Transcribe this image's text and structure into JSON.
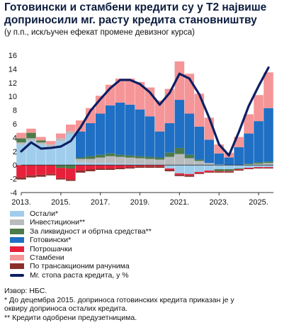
{
  "title_lines": [
    "Готовински и стамбени кредити су у Т2 највише",
    "доприносили мг. расту кредита становништву"
  ],
  "subtitle": "(у п.п., искључен ефекат промене девизног курса)",
  "colors": {
    "ostali": "#9fcdeb",
    "investicioni": "#b8bcbf",
    "likvidnost": "#4c7a4b",
    "gotovinski": "#1f6fc4",
    "potrosacki": "#e6203a",
    "stambeni": "#f59597",
    "transakcioni": "#8c2f2c",
    "line": "#0c1f63"
  },
  "legend": [
    {
      "key": "ostali",
      "label": "Остали*",
      "kind": "swatch"
    },
    {
      "key": "investicioni",
      "label": "Инвестициони**",
      "kind": "swatch"
    },
    {
      "key": "likvidnost",
      "label": "За ликвидност и обртна средства**",
      "kind": "swatch"
    },
    {
      "key": "gotovinski",
      "label": "Готовински*",
      "kind": "swatch"
    },
    {
      "key": "potrosacki",
      "label": "Потрошачки",
      "kind": "swatch"
    },
    {
      "key": "stambeni",
      "label": "Стамбени",
      "kind": "swatch"
    },
    {
      "key": "transakcioni",
      "label": "По трансакционим рачунима",
      "kind": "swatch"
    },
    {
      "key": "line",
      "label": "Мг. стопа раста кредита, у %",
      "kind": "line"
    }
  ],
  "notes": [
    "Извор: НБС.",
    "* До децембра 2015. доприноса готовинских кредита приказан је у",
    "оквиру доприноса осталих кредита.",
    "** Кредити одобрени предузетницима."
  ],
  "chart_data": {
    "type": "area",
    "x_label_ticks": [
      "2013.",
      "2015.",
      "2017.",
      "2019.",
      "2021.",
      "2023.",
      "2025."
    ],
    "x_tick_years": [
      2013,
      2015,
      2017,
      2019,
      2021,
      2023,
      2025
    ],
    "xlim": [
      2013.0,
      2025.75
    ],
    "ylim": [
      -4,
      16
    ],
    "y_ticks": [
      -4,
      -2,
      0,
      2,
      4,
      6,
      8,
      10,
      12,
      14,
      16
    ],
    "grid": false,
    "x": [
      2013.0,
      2013.5,
      2014.0,
      2014.5,
      2015.0,
      2015.5,
      2016.0,
      2016.5,
      2017.0,
      2017.5,
      2018.0,
      2018.5,
      2019.0,
      2019.5,
      2020.0,
      2020.5,
      2021.0,
      2021.5,
      2022.0,
      2022.5,
      2023.0,
      2023.5,
      2024.0,
      2024.5,
      2025.0,
      2025.5
    ],
    "series": [
      {
        "key": "ostali",
        "name": "Остали*",
        "values": [
          3.0,
          3.5,
          3.0,
          2.7,
          3.5,
          4.5,
          0.4,
          0.3,
          0.3,
          0.3,
          0.2,
          0.2,
          0.2,
          0.1,
          0.1,
          -0.5,
          -1.2,
          -1.3,
          -1.0,
          -0.8,
          -0.6,
          -0.6,
          -0.5,
          -0.4,
          -0.3,
          -0.3
        ]
      },
      {
        "key": "investicioni",
        "name": "Инвестициони**",
        "values": [
          0.3,
          0.4,
          0.3,
          0.3,
          0.4,
          0.4,
          0.5,
          0.6,
          0.8,
          1.0,
          1.0,
          0.9,
          0.8,
          0.8,
          0.7,
          1.2,
          1.6,
          1.0,
          0.6,
          0.3,
          0.1,
          0.0,
          0.0,
          0.1,
          0.2,
          0.3
        ]
      },
      {
        "key": "likvidnost",
        "name": "За ликвидност и обртна средства**",
        "values": [
          0.6,
          0.8,
          0.3,
          0.0,
          -0.4,
          -0.5,
          0.2,
          0.4,
          0.4,
          0.4,
          0.3,
          0.3,
          0.3,
          0.3,
          0.3,
          0.6,
          0.9,
          0.5,
          0.2,
          0.0,
          -0.3,
          -0.3,
          -0.1,
          0.1,
          0.2,
          0.2
        ]
      },
      {
        "key": "gotovinski",
        "name": "Готовински*",
        "values": [
          0.0,
          0.0,
          0.0,
          0.0,
          0.0,
          0.0,
          3.8,
          4.8,
          6.0,
          7.0,
          7.6,
          7.4,
          6.8,
          5.9,
          3.8,
          4.3,
          7.0,
          6.0,
          4.8,
          3.4,
          1.6,
          1.1,
          2.6,
          4.4,
          6.0,
          7.8
        ]
      },
      {
        "key": "potrosacki",
        "name": "Потрошачки",
        "values": [
          -1.8,
          -1.5,
          -1.4,
          -1.3,
          -1.5,
          -1.6,
          -0.8,
          -0.6,
          -0.5,
          -0.5,
          -0.4,
          -0.3,
          -0.2,
          -0.2,
          -0.2,
          -0.2,
          -0.2,
          -0.2,
          -0.2,
          -0.2,
          -0.1,
          -0.1,
          -0.1,
          -0.1,
          -0.1,
          -0.1
        ]
      },
      {
        "key": "stambeni",
        "name": "Стамбени",
        "values": [
          0.8,
          0.6,
          0.5,
          0.5,
          0.7,
          1.0,
          1.6,
          2.2,
          2.6,
          3.0,
          3.5,
          3.8,
          4.0,
          4.2,
          4.5,
          5.0,
          5.6,
          5.8,
          4.8,
          3.2,
          1.3,
          0.7,
          1.5,
          2.8,
          3.8,
          5.2
        ]
      },
      {
        "key": "transakcioni",
        "name": "По трансакционим рачунима",
        "values": [
          -0.3,
          -0.3,
          -0.3,
          -0.2,
          -0.2,
          -0.2,
          -0.3,
          -0.3,
          -0.2,
          -0.2,
          -0.2,
          -0.2,
          -0.2,
          -0.2,
          -0.2,
          -0.2,
          -0.2,
          -0.2,
          -0.1,
          -0.1,
          -0.1,
          -0.1,
          -0.1,
          -0.1,
          -0.1,
          -0.1
        ]
      }
    ],
    "line": {
      "name": "Мг. стопа раста кредита, у %",
      "values": [
        2.0,
        3.3,
        2.4,
        2.5,
        2.7,
        3.5,
        5.5,
        7.9,
        9.6,
        11.2,
        12.4,
        12.4,
        11.8,
        10.6,
        8.8,
        10.5,
        13.3,
        12.6,
        10.3,
        6.9,
        3.0,
        1.4,
        4.8,
        8.6,
        11.5,
        14.2
      ]
    }
  }
}
